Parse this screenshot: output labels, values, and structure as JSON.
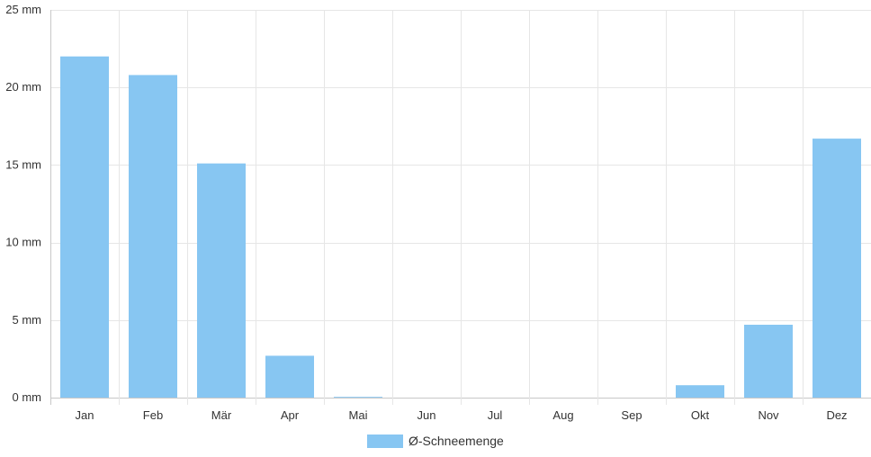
{
  "chart_data": {
    "type": "bar",
    "categories": [
      "Jan",
      "Feb",
      "Mär",
      "Apr",
      "Mai",
      "Jun",
      "Jul",
      "Aug",
      "Sep",
      "Okt",
      "Nov",
      "Dez"
    ],
    "series": [
      {
        "name": "Ø-Schneemenge",
        "values": [
          22.0,
          20.8,
          15.1,
          2.7,
          0.05,
          0,
          0,
          0,
          0,
          0.8,
          4.7,
          16.7
        ],
        "color": "#87c6f2"
      }
    ],
    "ylim": [
      0,
      25
    ],
    "yticks": [
      "0 mm",
      "5 mm",
      "10 mm",
      "15 mm",
      "20 mm",
      "25 mm"
    ],
    "ytick_values": [
      0,
      5,
      10,
      15,
      20,
      25
    ],
    "grid": true,
    "legend": "bottom-center",
    "grid_color": "#e6e6e6",
    "axis_color": "#c8c8c8"
  }
}
